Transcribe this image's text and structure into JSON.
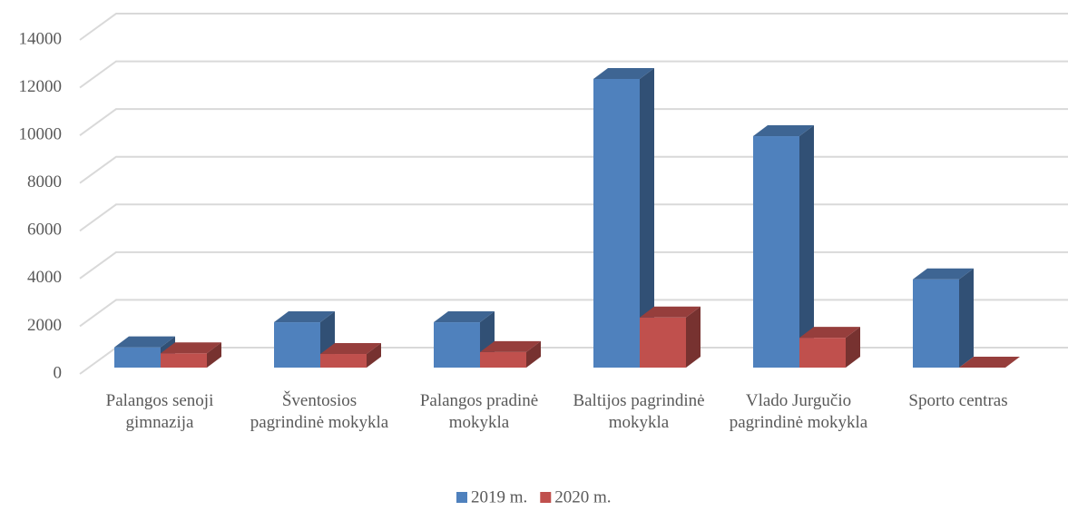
{
  "chart_data": {
    "type": "bar3d",
    "categories": [
      "Palangos senoji gimnazija",
      "Šventosios pagrindinė mokykla",
      "Palangos pradinė mokykla",
      "Baltijos pagrindinė mokykla",
      "Vlado Jurgučio pagrindinė mokykla",
      "Sporto centras"
    ],
    "series": [
      {
        "name": "2019 m.",
        "color": "#4f81bd",
        "values": [
          850,
          1900,
          1900,
          12100,
          9700,
          3700
        ]
      },
      {
        "name": "2020 m.",
        "color": "#c0504d",
        "values": [
          600,
          570,
          650,
          2100,
          1250,
          0
        ]
      }
    ],
    "ylim": [
      0,
      14000
    ],
    "yticks": [
      0,
      2000,
      4000,
      6000,
      8000,
      10000,
      12000,
      14000
    ],
    "grid": true,
    "legend": "bottom"
  }
}
